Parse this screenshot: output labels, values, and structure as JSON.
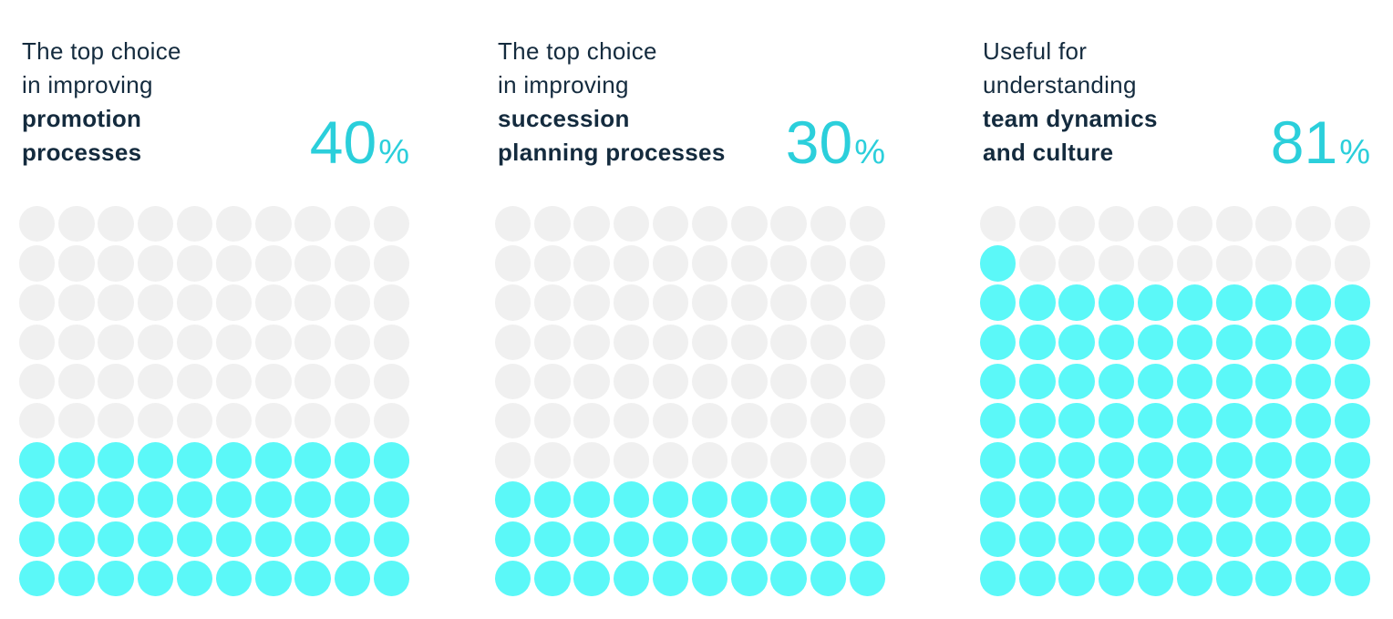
{
  "chart_data": {
    "type": "waffle",
    "title": "",
    "grid": {
      "rows": 10,
      "columns": 10,
      "percent_per_dot": 1,
      "fill_order": "bottom-up, left-to-right"
    },
    "percent_symbol": "%",
    "panels": [
      {
        "heading_regular": [
          "The top choice",
          "in improving"
        ],
        "heading_bold": [
          "promotion",
          "processes"
        ],
        "value": 40,
        "filled_dots": 40,
        "empty_dots": 60
      },
      {
        "heading_regular": [
          "The top choice",
          "in improving"
        ],
        "heading_bold": [
          "succession",
          "planning processes"
        ],
        "value": 30,
        "filled_dots": 30,
        "empty_dots": 70
      },
      {
        "heading_regular": [
          "Useful for",
          "understanding"
        ],
        "heading_bold": [
          "team dynamics",
          "and culture"
        ],
        "value": 81,
        "filled_dots": 81,
        "empty_dots": 19
      }
    ],
    "colors": {
      "heading_text": "#142B3E",
      "percent_text": "#2BCFDB",
      "dot_filled": "#5BF8F8",
      "dot_empty": "#F0F0F0",
      "background": "#FFFFFF"
    },
    "legend_position": "none",
    "gridlines": false
  }
}
